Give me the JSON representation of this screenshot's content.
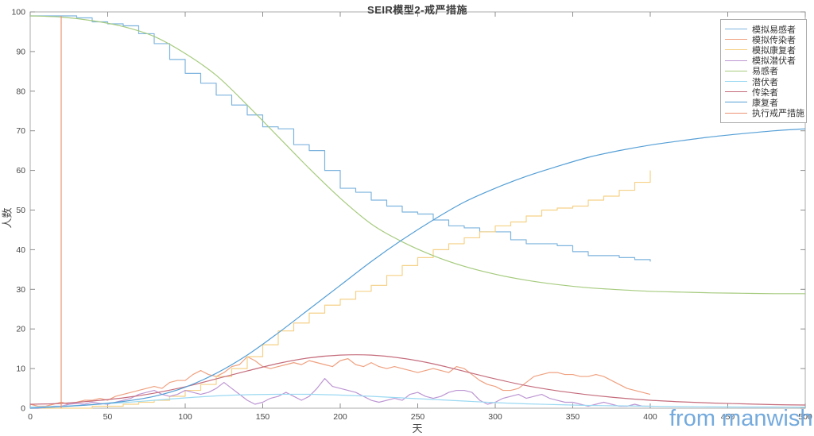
{
  "title": "SEIR模型2-戒严措施",
  "xlabel": "天",
  "ylabel": "人数",
  "watermark": "from manwish.cn",
  "colors": {
    "frame": "#ababab",
    "tick": "#8c8c8c",
    "tick_label": "#474747",
    "watermark": "#74aadd",
    "sim_susceptible": "#7eb4de",
    "sim_infectious": "#efa180",
    "sim_recovered": "#f5d187",
    "sim_exposed": "#bd96d3",
    "susceptible": "#a6cb7e",
    "exposed": "#9bd9f2",
    "infectious": "#c56c7c",
    "recovered": "#559fd6",
    "lockdown": "#ec9270"
  },
  "legend": {
    "entries": [
      {
        "label": "模拟易感者",
        "color": "#7eb4de"
      },
      {
        "label": "模拟传染者",
        "color": "#efa180"
      },
      {
        "label": "模拟康复者",
        "color": "#f5d187"
      },
      {
        "label": "模拟潜伏者",
        "color": "#bd96d3"
      },
      {
        "label": "易感者",
        "color": "#a6cb7e"
      },
      {
        "label": "潜伏者",
        "color": "#9bd9f2"
      },
      {
        "label": "传染者",
        "color": "#c56c7c"
      },
      {
        "label": "康复者",
        "color": "#559fd6"
      },
      {
        "label": "执行戒严措施",
        "color": "#ec9270"
      }
    ]
  },
  "chart_data": {
    "type": "line",
    "title": "SEIR模型2-戒严措施",
    "xlabel": "天",
    "ylabel": "人数",
    "xlim": [
      0,
      500
    ],
    "ylim": [
      0,
      100
    ],
    "xticks": [
      0,
      50,
      100,
      150,
      200,
      250,
      300,
      350,
      400,
      450,
      500
    ],
    "yticks": [
      0,
      10,
      20,
      30,
      40,
      50,
      60,
      70,
      80,
      90,
      100
    ],
    "grid": false,
    "legend_position": "top-right-inside",
    "series": [
      {
        "name": "模拟易感者",
        "style": "step",
        "color": "#7eb4de",
        "x_start": 0,
        "x_step": 10,
        "values": [
          99,
          99,
          99,
          98.5,
          97.5,
          97,
          96.5,
          94.5,
          92,
          88,
          84.5,
          82,
          79,
          76.5,
          74,
          71,
          70.5,
          66.5,
          65,
          60,
          55.5,
          54.5,
          52.5,
          51,
          49.5,
          49,
          47.5,
          46,
          45.5,
          44.5,
          44.5,
          42.5,
          41.5,
          41.5,
          41,
          39.5,
          38.5,
          38.5,
          38,
          37.5,
          37
        ]
      },
      {
        "name": "模拟传染者",
        "style": "line",
        "color": "#efa180",
        "x_start": 0,
        "x_step": 5,
        "values": [
          1,
          0.5,
          0.5,
          1,
          1.5,
          1,
          1.5,
          2,
          2,
          2.5,
          2,
          3,
          3.5,
          4,
          4.5,
          5,
          5.5,
          5,
          6.5,
          7,
          7,
          8.5,
          9.5,
          8.5,
          8,
          9,
          10.5,
          11,
          13,
          12,
          10.5,
          10,
          10.5,
          11,
          11.5,
          11,
          12,
          11.5,
          11,
          10.5,
          12,
          12.5,
          11,
          10.5,
          11.5,
          10.5,
          10,
          10.5,
          10,
          9.5,
          9,
          9.5,
          10,
          9.5,
          9,
          10.5,
          10,
          8.5,
          7,
          6,
          5.5,
          4.5,
          4.5,
          5,
          6.5,
          8,
          8.5,
          9,
          9,
          8.5,
          8.5,
          8,
          8,
          8.5,
          8,
          7,
          6,
          5,
          4.5,
          4,
          3.5
        ]
      },
      {
        "name": "模拟康复者",
        "style": "step",
        "color": "#f5d187",
        "x_start": 0,
        "x_step": 10,
        "values": [
          0,
          0,
          0,
          0,
          0.5,
          0.5,
          1,
          1.5,
          2,
          3,
          4.5,
          6,
          8,
          10,
          13,
          16,
          19.5,
          21.5,
          24,
          26,
          27.5,
          29.5,
          31,
          33.5,
          36,
          38,
          40,
          41.5,
          43,
          44.5,
          46,
          47,
          48.5,
          50,
          50.5,
          51,
          52.5,
          53.5,
          55,
          57,
          60
        ]
      },
      {
        "name": "模拟潜伏者",
        "style": "line",
        "color": "#bd96d3",
        "x_start": 0,
        "x_step": 5,
        "values": [
          0,
          0,
          0.2,
          0.5,
          0.5,
          1,
          1.2,
          1,
          1.5,
          1.2,
          1,
          1.5,
          2,
          2.5,
          3.5,
          4,
          4.5,
          3.5,
          3,
          3.5,
          4.5,
          4,
          3.5,
          4,
          5,
          6.5,
          5,
          3.5,
          2,
          1,
          1.5,
          2.5,
          3,
          4,
          3,
          2,
          3,
          5,
          7.5,
          5.5,
          5,
          4.5,
          4,
          3,
          2,
          1.5,
          2,
          2.5,
          2,
          3.5,
          4,
          3,
          2.5,
          3,
          4,
          4.5,
          4.5,
          4,
          2,
          1,
          1.5,
          2.5,
          3,
          3.5,
          2.5,
          3,
          3.5,
          2.5,
          2,
          1.5,
          1.5,
          1,
          0.5,
          1,
          1.5,
          1,
          0.5,
          0.5,
          1,
          0.5,
          0.5
        ]
      },
      {
        "name": "易感者",
        "style": "smooth",
        "color": "#a6cb7e",
        "x_start": 0,
        "x_step": 20,
        "values": [
          99,
          98.7,
          97.8,
          96.3,
          93.8,
          89.5,
          84,
          76.5,
          68.5,
          60.5,
          53,
          46.5,
          42,
          38.5,
          35.8,
          33.8,
          32.3,
          31.2,
          30.4,
          29.9,
          29.5,
          29.3,
          29.1,
          29,
          28.9,
          28.9
        ]
      },
      {
        "name": "潜伏者",
        "style": "smooth",
        "color": "#9bd9f2",
        "x_start": 0,
        "x_step": 20,
        "values": [
          0.3,
          0.5,
          0.9,
          1.4,
          2,
          2.6,
          3.1,
          3.4,
          3.5,
          3.5,
          3.3,
          3,
          2.6,
          2.2,
          1.8,
          1.4,
          1.1,
          0.9,
          0.7,
          0.6,
          0.5,
          0.4,
          0.35,
          0.3,
          0.3,
          0.25
        ]
      },
      {
        "name": "传染者",
        "style": "smooth",
        "color": "#c56c7c",
        "x_start": 0,
        "x_step": 20,
        "values": [
          1,
          1.2,
          1.8,
          2.6,
          3.8,
          5.4,
          7.4,
          9.4,
          11.3,
          12.7,
          13.4,
          13.4,
          12.6,
          11.2,
          9.3,
          7.4,
          5.7,
          4.4,
          3.4,
          2.6,
          2,
          1.6,
          1.3,
          1.1,
          0.9,
          0.8
        ]
      },
      {
        "name": "康复者",
        "style": "smooth",
        "color": "#559fd6",
        "x_start": 0,
        "x_step": 20,
        "values": [
          0,
          0.4,
          0.9,
          1.7,
          3,
          5.3,
          8.8,
          13.4,
          19,
          25,
          31,
          37,
          42.5,
          47.5,
          52,
          55.5,
          58.5,
          61,
          63.3,
          65,
          66.4,
          67.5,
          68.5,
          69.3,
          70,
          70.5
        ]
      },
      {
        "name": "执行戒严措施",
        "style": "vline",
        "color": "#ec9270",
        "x": 20,
        "y_range": [
          0,
          99
        ]
      }
    ]
  }
}
